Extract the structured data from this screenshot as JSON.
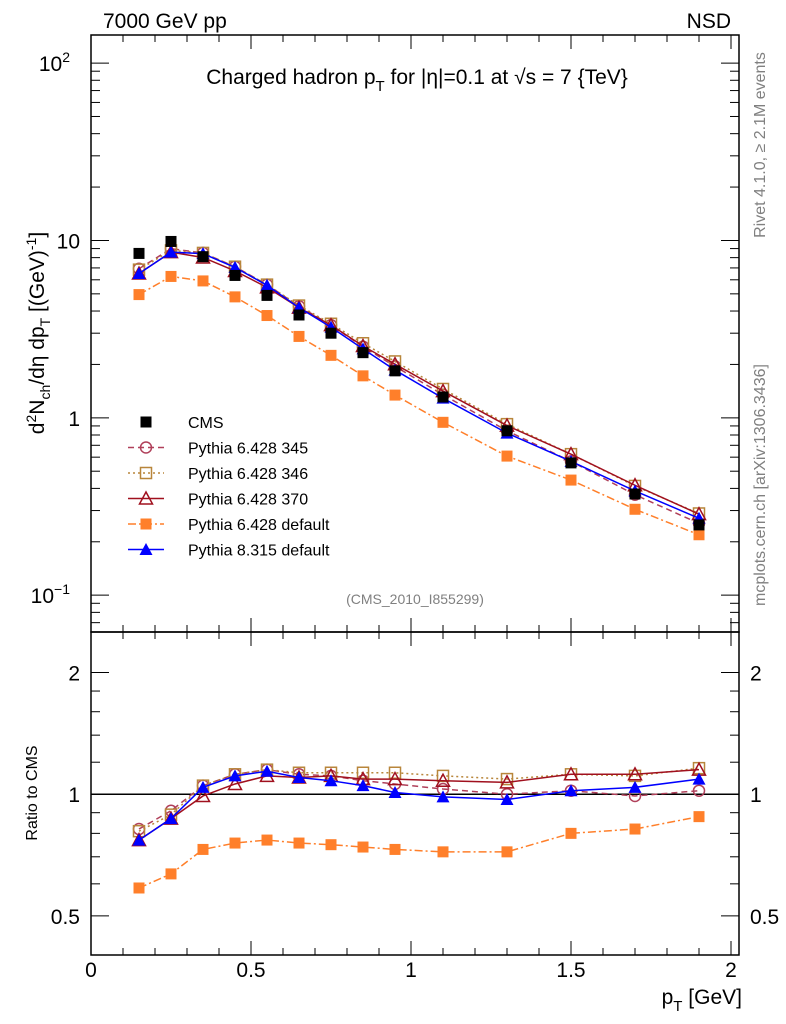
{
  "header": {
    "left": "7000 GeV pp",
    "right": "NSD"
  },
  "side_texts": {
    "rivet": "Rivet 4.1.0, ≥ 2.1M events",
    "mcplots": "mcplots.cern.ch [arXiv:1306.3436]"
  },
  "analysis_id": "(CMS_2010_I855299)",
  "chart_data": [
    {
      "type": "line",
      "title": {
        "pre": "Charged hadron p",
        "sub": "T",
        "post": " for |η|=0.1 at √s = 7 {TeV}"
      },
      "ylabel": {
        "a": "d",
        "sup2": "2",
        "b": "N",
        "sub_ch": "ch",
        "c": "/dη  dp",
        "sub_t": "T",
        "d": " [(GeV)",
        "sup": "-1",
        "e": "]"
      },
      "yscale": "log",
      "ylim": [
        0.062,
        144
      ],
      "xlim": [
        0,
        2.025
      ],
      "ytick_labels": [
        {
          "v": 0.1,
          "base": "10",
          "exp": "−1"
        },
        {
          "v": 1,
          "base": "1",
          "exp": ""
        },
        {
          "v": 10,
          "base": "10",
          "exp": ""
        },
        {
          "v": 100,
          "base": "10",
          "exp": "2"
        }
      ],
      "legend_position": "center-left",
      "x": [
        0.15,
        0.25,
        0.35,
        0.45,
        0.55,
        0.65,
        0.75,
        0.85,
        0.95,
        1.1,
        1.3,
        1.5,
        1.7,
        1.9
      ],
      "reference": {
        "name": "CMS",
        "color": "#000000",
        "marker": "filled-square",
        "values": [
          8.45,
          9.87,
          8.1,
          6.35,
          4.9,
          3.8,
          3.0,
          2.33,
          1.84,
          1.31,
          0.845,
          0.557,
          0.372,
          0.249
        ]
      },
      "series": [
        {
          "name": "Pythia 6.428 345",
          "color": "#b0405a",
          "marker": "open-circle",
          "dash": "6,4",
          "ratio": [
            0.82,
            0.91,
            1.05,
            1.12,
            1.15,
            1.12,
            1.11,
            1.08,
            1.06,
            1.03,
            1.0,
            1.02,
            0.99,
            1.02
          ]
        },
        {
          "name": "Pythia 6.428 346",
          "color": "#b8863b",
          "marker": "open-square",
          "dash": "2,3",
          "ratio": [
            0.81,
            0.89,
            1.05,
            1.12,
            1.15,
            1.13,
            1.13,
            1.13,
            1.13,
            1.11,
            1.09,
            1.12,
            1.11,
            1.16
          ]
        },
        {
          "name": "Pythia 6.428 370",
          "color": "#a0101e",
          "marker": "open-triangle",
          "dash": "",
          "ratio": [
            0.77,
            0.87,
            0.99,
            1.06,
            1.11,
            1.1,
            1.11,
            1.09,
            1.09,
            1.08,
            1.07,
            1.12,
            1.12,
            1.15
          ]
        },
        {
          "name": "Pythia 6.428 default",
          "color": "#ff7f2a",
          "marker": "filled-square",
          "dash": "8,3,2,3",
          "ratio": [
            0.586,
            0.635,
            0.73,
            0.757,
            0.77,
            0.757,
            0.75,
            0.74,
            0.73,
            0.72,
            0.72,
            0.8,
            0.82,
            0.88
          ]
        },
        {
          "name": "Pythia 8.315 default",
          "color": "#0000ff",
          "marker": "filled-triangle",
          "dash": "",
          "ratio": [
            0.77,
            0.87,
            1.04,
            1.11,
            1.14,
            1.1,
            1.08,
            1.05,
            1.01,
            0.985,
            0.97,
            1.02,
            1.04,
            1.09
          ]
        }
      ]
    },
    {
      "type": "line",
      "ylabel": "Ratio to CMS",
      "xlabel": {
        "pre": "p",
        "sub": "T",
        "post": " [GeV]"
      },
      "yscale": "log",
      "ylim": [
        0.4,
        2.52
      ],
      "xlim": [
        0,
        2.025
      ],
      "xtick_labels": [
        "0",
        "0.5",
        "1",
        "1.5",
        "2"
      ],
      "ytick_labels": [
        "0.5",
        "1",
        "2"
      ]
    }
  ]
}
